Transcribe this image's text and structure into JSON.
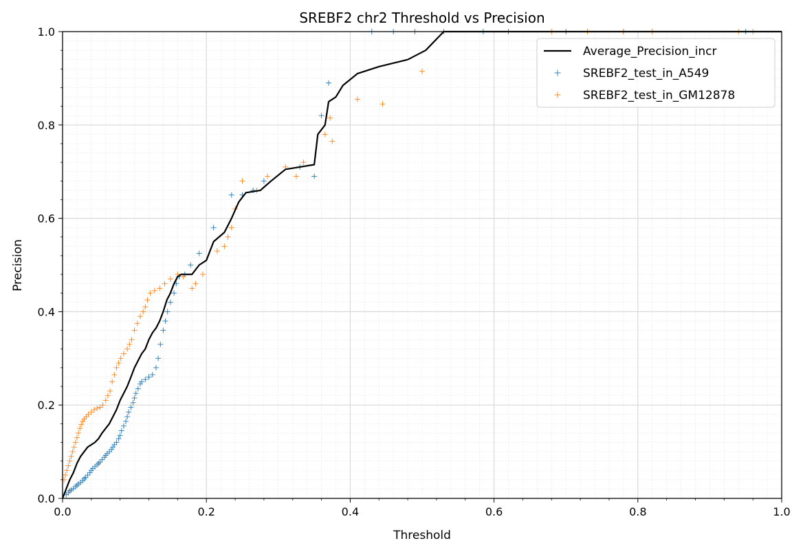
{
  "chart_data": {
    "type": "scatter",
    "title": "SREBF2 chr2 Threshold vs Precision",
    "xlabel": "Threshold",
    "ylabel": "Precision",
    "xlim": [
      0,
      1
    ],
    "ylim": [
      0,
      1
    ],
    "x_ticks": [
      "0.0",
      "0.2",
      "0.4",
      "0.6",
      "0.8",
      "1.0"
    ],
    "y_ticks": [
      "0.0",
      "0.2",
      "0.4",
      "0.6",
      "0.8",
      "1.0"
    ],
    "grid": true,
    "minor_grid": true,
    "legend_position": "top-right",
    "series": [
      {
        "name": "Average_Precision_incr",
        "kind": "line",
        "color": "#000000",
        "points": [
          [
            0.0,
            0.0
          ],
          [
            0.005,
            0.02
          ],
          [
            0.01,
            0.04
          ],
          [
            0.015,
            0.055
          ],
          [
            0.02,
            0.075
          ],
          [
            0.025,
            0.09
          ],
          [
            0.03,
            0.1
          ],
          [
            0.035,
            0.11
          ],
          [
            0.04,
            0.115
          ],
          [
            0.045,
            0.12
          ],
          [
            0.05,
            0.128
          ],
          [
            0.055,
            0.14
          ],
          [
            0.06,
            0.15
          ],
          [
            0.065,
            0.16
          ],
          [
            0.07,
            0.175
          ],
          [
            0.075,
            0.19
          ],
          [
            0.08,
            0.21
          ],
          [
            0.085,
            0.225
          ],
          [
            0.09,
            0.24
          ],
          [
            0.095,
            0.26
          ],
          [
            0.1,
            0.28
          ],
          [
            0.105,
            0.295
          ],
          [
            0.11,
            0.31
          ],
          [
            0.115,
            0.32
          ],
          [
            0.12,
            0.34
          ],
          [
            0.125,
            0.355
          ],
          [
            0.13,
            0.365
          ],
          [
            0.135,
            0.38
          ],
          [
            0.14,
            0.4
          ],
          [
            0.145,
            0.425
          ],
          [
            0.15,
            0.44
          ],
          [
            0.155,
            0.46
          ],
          [
            0.16,
            0.475
          ],
          [
            0.165,
            0.48
          ],
          [
            0.18,
            0.48
          ],
          [
            0.19,
            0.5
          ],
          [
            0.2,
            0.51
          ],
          [
            0.21,
            0.55
          ],
          [
            0.225,
            0.57
          ],
          [
            0.235,
            0.6
          ],
          [
            0.245,
            0.635
          ],
          [
            0.255,
            0.655
          ],
          [
            0.275,
            0.66
          ],
          [
            0.29,
            0.68
          ],
          [
            0.31,
            0.705
          ],
          [
            0.33,
            0.71
          ],
          [
            0.35,
            0.715
          ],
          [
            0.355,
            0.78
          ],
          [
            0.365,
            0.8
          ],
          [
            0.37,
            0.85
          ],
          [
            0.38,
            0.86
          ],
          [
            0.39,
            0.885
          ],
          [
            0.41,
            0.91
          ],
          [
            0.44,
            0.925
          ],
          [
            0.48,
            0.94
          ],
          [
            0.505,
            0.96
          ],
          [
            0.53,
            1.0
          ],
          [
            0.6,
            1.0
          ],
          [
            1.0,
            1.0
          ]
        ]
      },
      {
        "name": "SREBF2_test_in_A549",
        "kind": "scatter",
        "marker": "+",
        "color": "#1f77b4",
        "points": [
          [
            0.0,
            0.0
          ],
          [
            0.005,
            0.008
          ],
          [
            0.008,
            0.012
          ],
          [
            0.01,
            0.016
          ],
          [
            0.012,
            0.018
          ],
          [
            0.015,
            0.021
          ],
          [
            0.018,
            0.025
          ],
          [
            0.02,
            0.028
          ],
          [
            0.022,
            0.031
          ],
          [
            0.025,
            0.034
          ],
          [
            0.028,
            0.038
          ],
          [
            0.03,
            0.042
          ],
          [
            0.032,
            0.045
          ],
          [
            0.035,
            0.05
          ],
          [
            0.038,
            0.055
          ],
          [
            0.04,
            0.06
          ],
          [
            0.042,
            0.064
          ],
          [
            0.045,
            0.068
          ],
          [
            0.048,
            0.072
          ],
          [
            0.05,
            0.075
          ],
          [
            0.052,
            0.078
          ],
          [
            0.055,
            0.083
          ],
          [
            0.058,
            0.088
          ],
          [
            0.06,
            0.092
          ],
          [
            0.062,
            0.096
          ],
          [
            0.065,
            0.1
          ],
          [
            0.068,
            0.105
          ],
          [
            0.07,
            0.11
          ],
          [
            0.072,
            0.115
          ],
          [
            0.075,
            0.12
          ],
          [
            0.078,
            0.128
          ],
          [
            0.08,
            0.135
          ],
          [
            0.082,
            0.145
          ],
          [
            0.085,
            0.155
          ],
          [
            0.088,
            0.165
          ],
          [
            0.09,
            0.175
          ],
          [
            0.092,
            0.185
          ],
          [
            0.095,
            0.195
          ],
          [
            0.098,
            0.205
          ],
          [
            0.1,
            0.215
          ],
          [
            0.102,
            0.225
          ],
          [
            0.105,
            0.235
          ],
          [
            0.108,
            0.245
          ],
          [
            0.11,
            0.25
          ],
          [
            0.115,
            0.255
          ],
          [
            0.12,
            0.26
          ],
          [
            0.125,
            0.265
          ],
          [
            0.13,
            0.28
          ],
          [
            0.133,
            0.3
          ],
          [
            0.136,
            0.33
          ],
          [
            0.14,
            0.36
          ],
          [
            0.143,
            0.38
          ],
          [
            0.146,
            0.4
          ],
          [
            0.15,
            0.42
          ],
          [
            0.155,
            0.44
          ],
          [
            0.158,
            0.46
          ],
          [
            0.162,
            0.475
          ],
          [
            0.17,
            0.48
          ],
          [
            0.178,
            0.5
          ],
          [
            0.19,
            0.525
          ],
          [
            0.21,
            0.58
          ],
          [
            0.235,
            0.65
          ],
          [
            0.25,
            0.65
          ],
          [
            0.265,
            0.66
          ],
          [
            0.28,
            0.68
          ],
          [
            0.33,
            0.71
          ],
          [
            0.35,
            0.69
          ],
          [
            0.36,
            0.82
          ],
          [
            0.37,
            0.89
          ],
          [
            0.43,
            1.0
          ],
          [
            0.46,
            1.0
          ],
          [
            0.49,
            1.0
          ],
          [
            0.53,
            1.0
          ],
          [
            0.585,
            1.0
          ],
          [
            0.62,
            1.0
          ],
          [
            0.7,
            1.0
          ],
          [
            0.78,
            1.0
          ],
          [
            0.95,
            1.0
          ]
        ]
      },
      {
        "name": "SREBF2_test_in_GM12878",
        "kind": "scatter",
        "marker": "+",
        "color": "#ff7f0e",
        "points": [
          [
            0.002,
            0.04
          ],
          [
            0.004,
            0.05
          ],
          [
            0.006,
            0.06
          ],
          [
            0.008,
            0.07
          ],
          [
            0.01,
            0.08
          ],
          [
            0.012,
            0.09
          ],
          [
            0.014,
            0.1
          ],
          [
            0.016,
            0.11
          ],
          [
            0.018,
            0.12
          ],
          [
            0.02,
            0.13
          ],
          [
            0.022,
            0.14
          ],
          [
            0.024,
            0.15
          ],
          [
            0.026,
            0.158
          ],
          [
            0.028,
            0.165
          ],
          [
            0.03,
            0.17
          ],
          [
            0.033,
            0.175
          ],
          [
            0.036,
            0.18
          ],
          [
            0.04,
            0.185
          ],
          [
            0.044,
            0.19
          ],
          [
            0.048,
            0.193
          ],
          [
            0.052,
            0.195
          ],
          [
            0.056,
            0.2
          ],
          [
            0.06,
            0.21
          ],
          [
            0.063,
            0.22
          ],
          [
            0.066,
            0.23
          ],
          [
            0.069,
            0.25
          ],
          [
            0.072,
            0.265
          ],
          [
            0.075,
            0.28
          ],
          [
            0.078,
            0.29
          ],
          [
            0.081,
            0.3
          ],
          [
            0.085,
            0.31
          ],
          [
            0.09,
            0.32
          ],
          [
            0.093,
            0.33
          ],
          [
            0.096,
            0.34
          ],
          [
            0.1,
            0.36
          ],
          [
            0.104,
            0.375
          ],
          [
            0.108,
            0.39
          ],
          [
            0.112,
            0.4
          ],
          [
            0.115,
            0.41
          ],
          [
            0.118,
            0.425
          ],
          [
            0.122,
            0.44
          ],
          [
            0.128,
            0.445
          ],
          [
            0.135,
            0.45
          ],
          [
            0.142,
            0.46
          ],
          [
            0.15,
            0.47
          ],
          [
            0.16,
            0.48
          ],
          [
            0.168,
            0.475
          ],
          [
            0.18,
            0.45
          ],
          [
            0.185,
            0.46
          ],
          [
            0.195,
            0.48
          ],
          [
            0.215,
            0.53
          ],
          [
            0.225,
            0.54
          ],
          [
            0.23,
            0.56
          ],
          [
            0.235,
            0.58
          ],
          [
            0.24,
            0.62
          ],
          [
            0.25,
            0.68
          ],
          [
            0.27,
            0.66
          ],
          [
            0.285,
            0.69
          ],
          [
            0.31,
            0.71
          ],
          [
            0.325,
            0.69
          ],
          [
            0.335,
            0.72
          ],
          [
            0.365,
            0.78
          ],
          [
            0.372,
            0.815
          ],
          [
            0.375,
            0.765
          ],
          [
            0.41,
            0.855
          ],
          [
            0.445,
            0.845
          ],
          [
            0.5,
            0.915
          ],
          [
            0.68,
            1.0
          ],
          [
            0.73,
            1.0
          ],
          [
            0.78,
            1.0
          ],
          [
            0.82,
            1.0
          ],
          [
            0.94,
            1.0
          ],
          [
            0.96,
            1.0
          ]
        ]
      }
    ]
  }
}
